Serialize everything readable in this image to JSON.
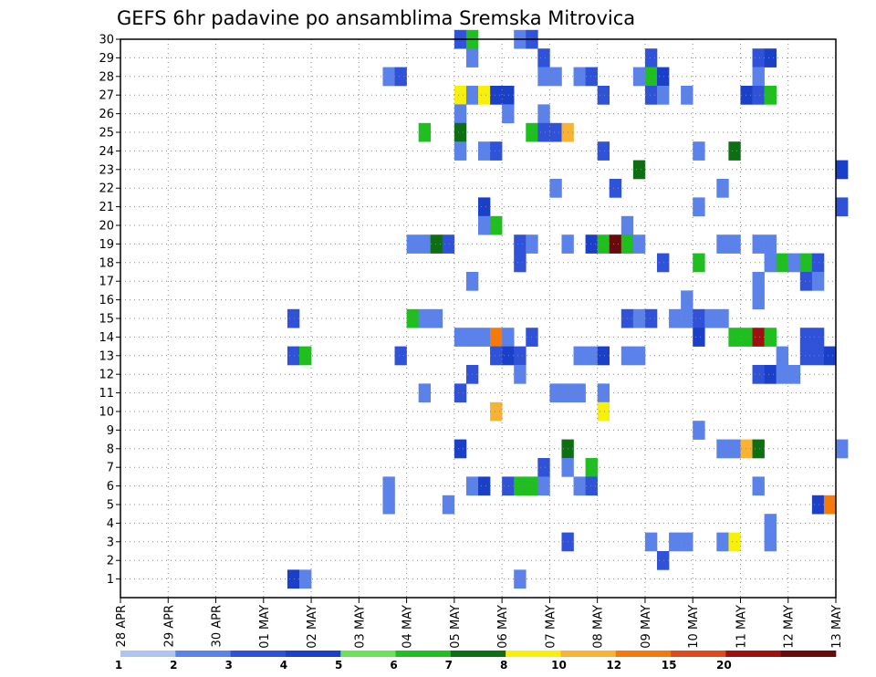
{
  "chart_data": {
    "type": "heatmap",
    "title": "GEFS 6hr padavine po ansamblima Sremska Mitrovica",
    "xlabel": "",
    "ylabel": "",
    "x_tick_labels": [
      "28 APR",
      "29 APR",
      "30 APR",
      "01 MAY",
      "02 MAY",
      "03 MAY",
      "04 MAY",
      "05 MAY",
      "06 MAY",
      "07 MAY",
      "08 MAY",
      "09 MAY",
      "10 MAY",
      "11 MAY",
      "12 MAY",
      "13 MAY"
    ],
    "y_range": [
      1,
      30
    ],
    "y_tick_labels": [
      "1",
      "2",
      "3",
      "4",
      "5",
      "6",
      "7",
      "8",
      "9",
      "10",
      "11",
      "12",
      "13",
      "14",
      "15",
      "16",
      "17",
      "18",
      "19",
      "20",
      "21",
      "22",
      "23",
      "24",
      "25",
      "26",
      "27",
      "28",
      "29",
      "30"
    ],
    "x_step": "6hr",
    "grid": true,
    "colorbar": {
      "labels": [
        "1",
        "2",
        "3",
        "4",
        "5",
        "6",
        "7",
        "8",
        "10",
        "12",
        "15",
        "20"
      ],
      "colors": [
        "#b0c4f2",
        "#5b82ea",
        "#2f52d9",
        "#1a3fc8",
        "#6ce25a",
        "#1fbf1f",
        "#0e6e14",
        "#f7f10a",
        "#f7b434",
        "#f47b0b",
        "#e04a1a",
        "#a01010",
        "#6b0a0a"
      ]
    },
    "cells": [
      [
        7.0,
        30,
        2
      ],
      [
        7.25,
        30,
        5
      ],
      [
        8.25,
        30,
        1
      ],
      [
        8.5,
        30,
        2
      ],
      [
        7.25,
        29,
        1
      ],
      [
        8.75,
        29,
        2
      ],
      [
        11.0,
        29,
        2
      ],
      [
        13.25,
        29,
        2
      ],
      [
        13.5,
        29,
        3
      ],
      [
        5.5,
        28,
        1
      ],
      [
        5.75,
        28,
        2
      ],
      [
        8.75,
        28,
        1
      ],
      [
        9.0,
        28,
        1
      ],
      [
        9.5,
        28,
        1
      ],
      [
        9.75,
        28,
        2
      ],
      [
        10.75,
        28,
        1
      ],
      [
        11.0,
        28,
        5
      ],
      [
        11.25,
        28,
        3
      ],
      [
        13.25,
        28,
        1
      ],
      [
        7.0,
        27,
        7
      ],
      [
        7.25,
        27,
        1
      ],
      [
        7.5,
        27,
        7
      ],
      [
        7.75,
        27,
        3
      ],
      [
        8.0,
        27,
        3
      ],
      [
        10.0,
        27,
        2
      ],
      [
        11.0,
        27,
        2
      ],
      [
        11.25,
        27,
        1
      ],
      [
        11.75,
        27,
        1
      ],
      [
        13.0,
        27,
        3
      ],
      [
        13.25,
        27,
        2
      ],
      [
        13.5,
        27,
        5
      ],
      [
        7.0,
        26,
        1
      ],
      [
        8.0,
        26,
        1
      ],
      [
        8.75,
        26,
        1
      ],
      [
        6.25,
        25,
        5
      ],
      [
        7.0,
        25,
        6
      ],
      [
        8.5,
        25,
        5
      ],
      [
        8.75,
        25,
        2
      ],
      [
        9.0,
        25,
        2
      ],
      [
        9.25,
        25,
        8
      ],
      [
        7.0,
        24,
        1
      ],
      [
        7.5,
        24,
        1
      ],
      [
        7.75,
        24,
        2
      ],
      [
        10.0,
        24,
        2
      ],
      [
        12.0,
        24,
        1
      ],
      [
        12.75,
        24,
        6
      ],
      [
        10.75,
        23,
        6
      ],
      [
        15.0,
        23,
        3
      ],
      [
        9.0,
        22,
        1
      ],
      [
        10.25,
        22,
        2
      ],
      [
        12.5,
        22,
        1
      ],
      [
        7.5,
        21,
        3
      ],
      [
        12.0,
        21,
        1
      ],
      [
        15.0,
        21,
        2
      ],
      [
        7.5,
        20,
        1
      ],
      [
        7.75,
        20,
        5
      ],
      [
        10.5,
        20,
        1
      ],
      [
        6.0,
        19,
        1
      ],
      [
        6.25,
        19,
        1
      ],
      [
        6.5,
        19,
        6
      ],
      [
        6.75,
        19,
        2
      ],
      [
        8.25,
        19,
        2
      ],
      [
        8.5,
        19,
        1
      ],
      [
        9.25,
        19,
        1
      ],
      [
        9.75,
        19,
        3
      ],
      [
        10.0,
        19,
        5
      ],
      [
        10.25,
        19,
        12
      ],
      [
        10.5,
        19,
        5
      ],
      [
        10.75,
        19,
        1
      ],
      [
        12.5,
        19,
        1
      ],
      [
        12.75,
        19,
        1
      ],
      [
        13.25,
        19,
        1
      ],
      [
        13.5,
        19,
        1
      ],
      [
        8.25,
        18,
        2
      ],
      [
        11.25,
        18,
        2
      ],
      [
        12.0,
        18,
        5
      ],
      [
        13.5,
        18,
        1
      ],
      [
        13.75,
        18,
        5
      ],
      [
        14.0,
        18,
        1
      ],
      [
        14.25,
        18,
        5
      ],
      [
        14.5,
        18,
        2
      ],
      [
        7.25,
        17,
        1
      ],
      [
        13.25,
        17,
        1
      ],
      [
        14.25,
        17,
        2
      ],
      [
        14.5,
        17,
        1
      ],
      [
        11.75,
        16,
        1
      ],
      [
        13.25,
        16,
        1
      ],
      [
        3.5,
        15,
        2
      ],
      [
        6.0,
        15,
        5
      ],
      [
        6.25,
        15,
        1
      ],
      [
        6.5,
        15,
        1
      ],
      [
        10.5,
        15,
        2
      ],
      [
        10.75,
        15,
        1
      ],
      [
        11.0,
        15,
        2
      ],
      [
        11.5,
        15,
        1
      ],
      [
        11.75,
        15,
        1
      ],
      [
        12.0,
        15,
        2
      ],
      [
        12.25,
        15,
        1
      ],
      [
        12.5,
        15,
        1
      ],
      [
        7.0,
        14,
        1
      ],
      [
        7.25,
        14,
        1
      ],
      [
        7.5,
        14,
        1
      ],
      [
        7.75,
        14,
        9
      ],
      [
        8.0,
        14,
        1
      ],
      [
        8.5,
        14,
        2
      ],
      [
        12.0,
        14,
        3
      ],
      [
        12.75,
        14,
        5
      ],
      [
        13.0,
        14,
        5
      ],
      [
        13.25,
        14,
        11
      ],
      [
        13.5,
        14,
        5
      ],
      [
        14.25,
        14,
        2
      ],
      [
        14.5,
        14,
        2
      ],
      [
        3.5,
        13,
        2
      ],
      [
        3.75,
        13,
        5
      ],
      [
        5.75,
        13,
        2
      ],
      [
        7.75,
        13,
        2
      ],
      [
        8.0,
        13,
        3
      ],
      [
        8.25,
        13,
        2
      ],
      [
        9.5,
        13,
        1
      ],
      [
        9.75,
        13,
        1
      ],
      [
        10.0,
        13,
        3
      ],
      [
        10.5,
        13,
        1
      ],
      [
        10.75,
        13,
        1
      ],
      [
        13.75,
        13,
        1
      ],
      [
        14.25,
        13,
        2
      ],
      [
        14.5,
        13,
        2
      ],
      [
        14.75,
        13,
        3
      ],
      [
        7.25,
        12,
        2
      ],
      [
        8.25,
        12,
        1
      ],
      [
        13.25,
        12,
        2
      ],
      [
        13.5,
        12,
        3
      ],
      [
        13.75,
        12,
        1
      ],
      [
        14.0,
        12,
        1
      ],
      [
        6.25,
        11,
        1
      ],
      [
        7.0,
        11,
        2
      ],
      [
        9.0,
        11,
        1
      ],
      [
        9.25,
        11,
        1
      ],
      [
        9.5,
        11,
        1
      ],
      [
        10.0,
        11,
        1
      ],
      [
        7.75,
        10,
        8
      ],
      [
        10.0,
        10,
        7
      ],
      [
        12.0,
        9,
        1
      ],
      [
        7.0,
        8,
        3
      ],
      [
        9.25,
        8,
        6
      ],
      [
        12.5,
        8,
        1
      ],
      [
        12.75,
        8,
        1
      ],
      [
        13.0,
        8,
        8
      ],
      [
        13.25,
        8,
        6
      ],
      [
        15.0,
        8,
        1
      ],
      [
        8.75,
        7,
        2
      ],
      [
        9.25,
        7,
        1
      ],
      [
        9.75,
        7,
        5
      ],
      [
        5.5,
        6,
        1
      ],
      [
        7.25,
        6,
        1
      ],
      [
        7.5,
        6,
        3
      ],
      [
        8.0,
        6,
        2
      ],
      [
        8.25,
        6,
        5
      ],
      [
        8.5,
        6,
        5
      ],
      [
        8.75,
        6,
        1
      ],
      [
        9.5,
        6,
        1
      ],
      [
        9.75,
        6,
        2
      ],
      [
        13.25,
        6,
        1
      ],
      [
        5.5,
        5,
        1
      ],
      [
        6.75,
        5,
        1
      ],
      [
        14.5,
        5,
        3
      ],
      [
        14.75,
        5,
        9
      ],
      [
        13.5,
        4,
        1
      ],
      [
        9.25,
        3,
        2
      ],
      [
        11.0,
        3,
        1
      ],
      [
        11.5,
        3,
        1
      ],
      [
        11.75,
        3,
        1
      ],
      [
        12.5,
        3,
        1
      ],
      [
        12.75,
        3,
        7
      ],
      [
        13.5,
        3,
        1
      ],
      [
        11.25,
        2,
        2
      ],
      [
        3.5,
        1,
        3
      ],
      [
        3.75,
        1,
        1
      ],
      [
        8.25,
        1,
        1
      ]
    ]
  }
}
